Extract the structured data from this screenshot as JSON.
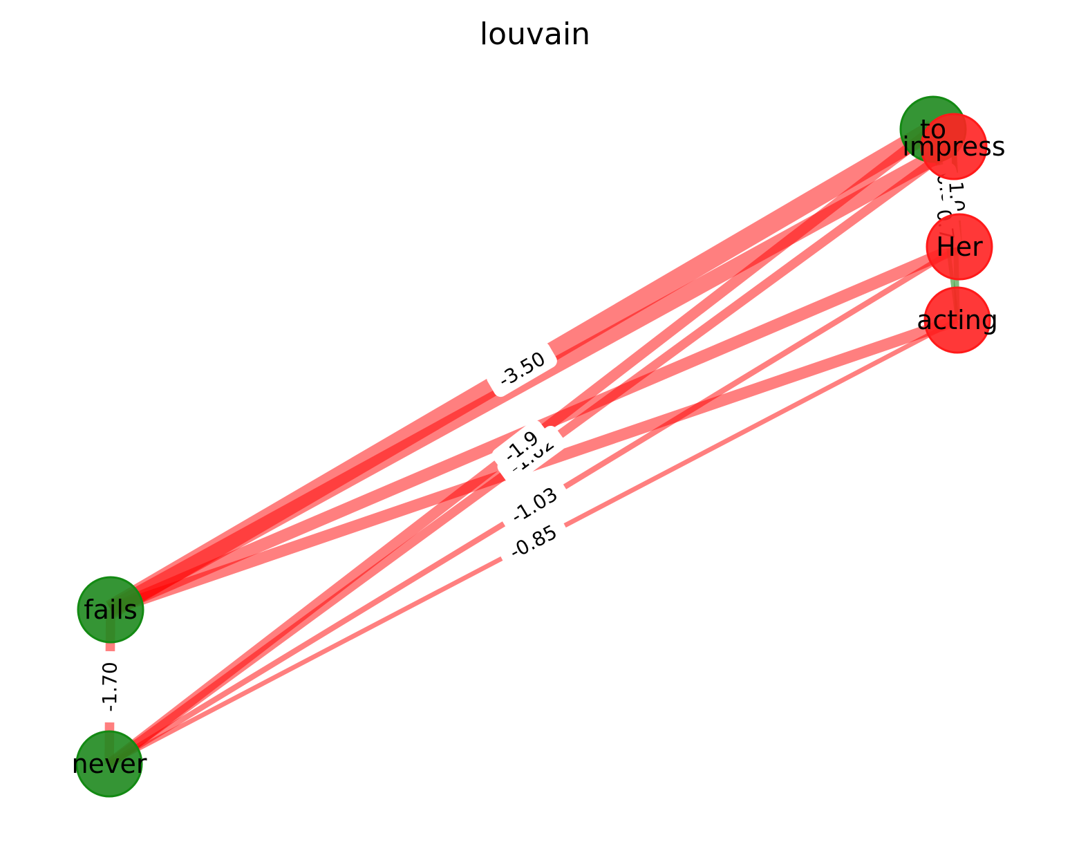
{
  "title": "louvain",
  "colors": {
    "negative": "#ff0000",
    "positive": "#008000"
  },
  "nodes": [
    {
      "id": "to",
      "label": "to",
      "community": "green"
    },
    {
      "id": "impress",
      "label": "impress",
      "community": "red"
    },
    {
      "id": "Her",
      "label": "Her",
      "community": "red"
    },
    {
      "id": "acting",
      "label": "acting",
      "community": "red"
    },
    {
      "id": "fails",
      "label": "fails",
      "community": "green"
    },
    {
      "id": "never",
      "label": "never",
      "community": "green"
    }
  ],
  "edges": [
    {
      "source": "to",
      "target": "fails",
      "weight": -3.5,
      "label": "-3.50"
    },
    {
      "source": "impress",
      "target": "fails",
      "weight": -2.9,
      "label": ""
    },
    {
      "source": "Her",
      "target": "fails",
      "weight": -2.2,
      "label": ""
    },
    {
      "source": "acting",
      "target": "fails",
      "weight": -2.1,
      "label": ""
    },
    {
      "source": "impress",
      "target": "never",
      "weight": -1.62,
      "label": "-1.62"
    },
    {
      "source": "to",
      "target": "never",
      "weight": -1.9,
      "label": "-1.9"
    },
    {
      "source": "Her",
      "target": "never",
      "weight": -1.03,
      "label": "-1.03"
    },
    {
      "source": "acting",
      "target": "never",
      "weight": -0.85,
      "label": "-0.85"
    },
    {
      "source": "fails",
      "target": "never",
      "weight": -1.7,
      "label": "-1.70"
    },
    {
      "source": "to",
      "target": "Her",
      "weight": 0.8,
      "label": "0.8"
    },
    {
      "source": "impress",
      "target": "Her",
      "weight": 1.0,
      "label": "1.0"
    },
    {
      "source": "to",
      "target": "acting",
      "weight": 0.7,
      "label": "0.7"
    },
    {
      "source": "impress",
      "target": "acting",
      "weight": 0.9,
      "label": ""
    }
  ]
}
